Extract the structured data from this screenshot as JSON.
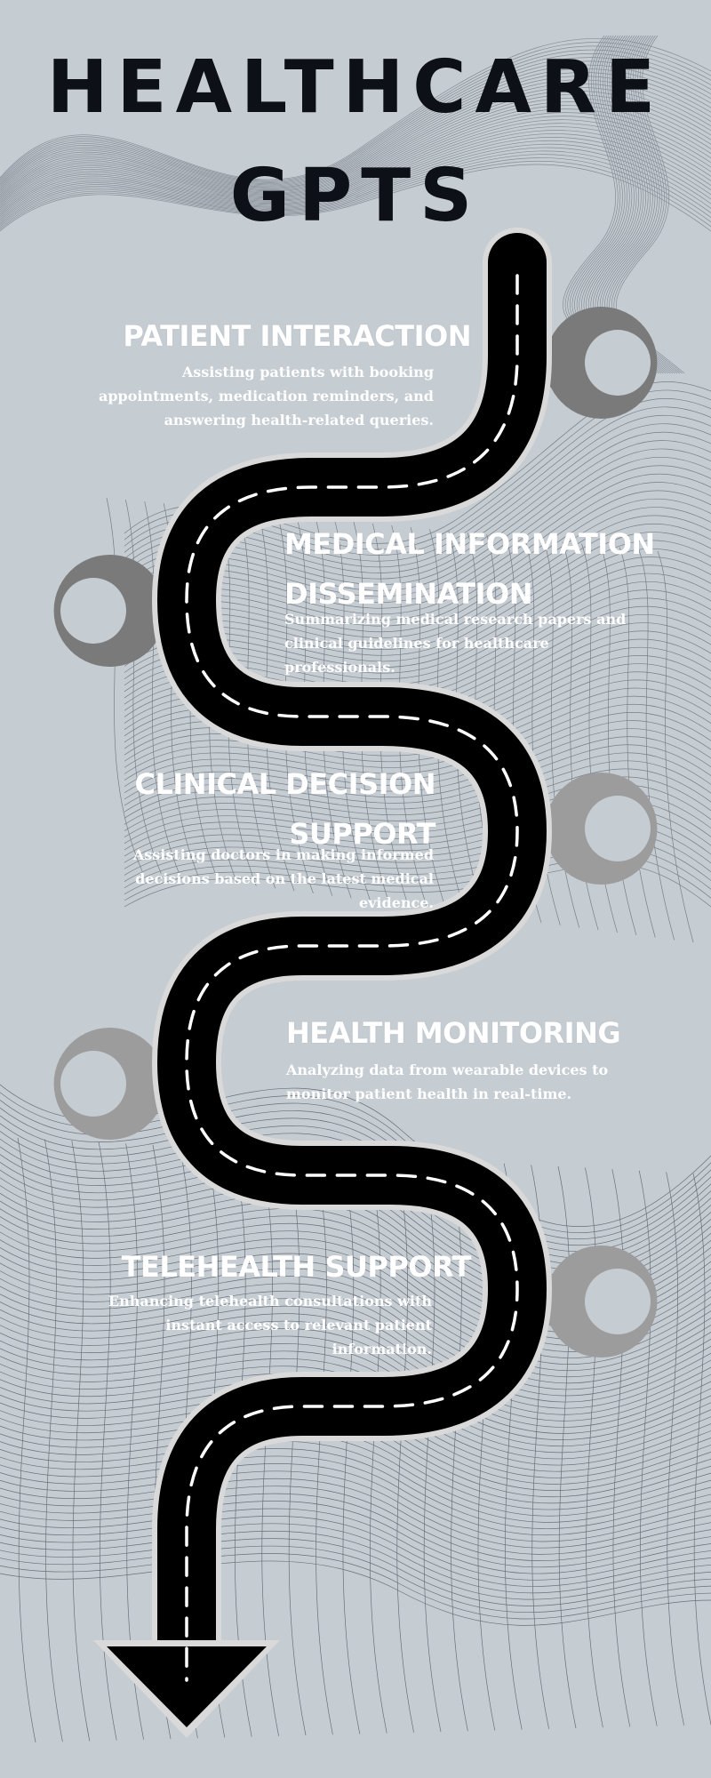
{
  "title": {
    "line1": "HEALTHCARE",
    "line2": "GPTS"
  },
  "sections": [
    {
      "heading": "PATIENT INTERACTION",
      "description": "Assisting patients with booking appointments, medication reminders, and answering health-related queries."
    },
    {
      "heading": "MEDICAL INFORMATION DISSEMINATION",
      "description": "Summarizing medical research papers and clinical guidelines for healthcare professionals."
    },
    {
      "heading": "CLINICAL DECISION SUPPORT",
      "description": "Assisting doctors in making informed decisions based on the latest medical evidence."
    },
    {
      "heading": "HEALTH MONITORING",
      "description": "Analyzing data from wearable devices to monitor patient health in real-time."
    },
    {
      "heading": "TELEHEALTH SUPPORT",
      "description": "Enhancing telehealth consultations with instant access to relevant patient information."
    }
  ],
  "colors": {
    "background": "#c5ccd2",
    "road": "#000000",
    "road_border": "#d9d9d9",
    "road_dash": "#ffffff",
    "pin_dark": "#7a7a7a",
    "pin_light": "#9c9c9c",
    "wave_lines": "#3b3f4c",
    "heading_text": "#ffffff",
    "title_text": "#0d1117"
  },
  "icons": [
    "location-pin-icon",
    "arrow-down-icon"
  ]
}
